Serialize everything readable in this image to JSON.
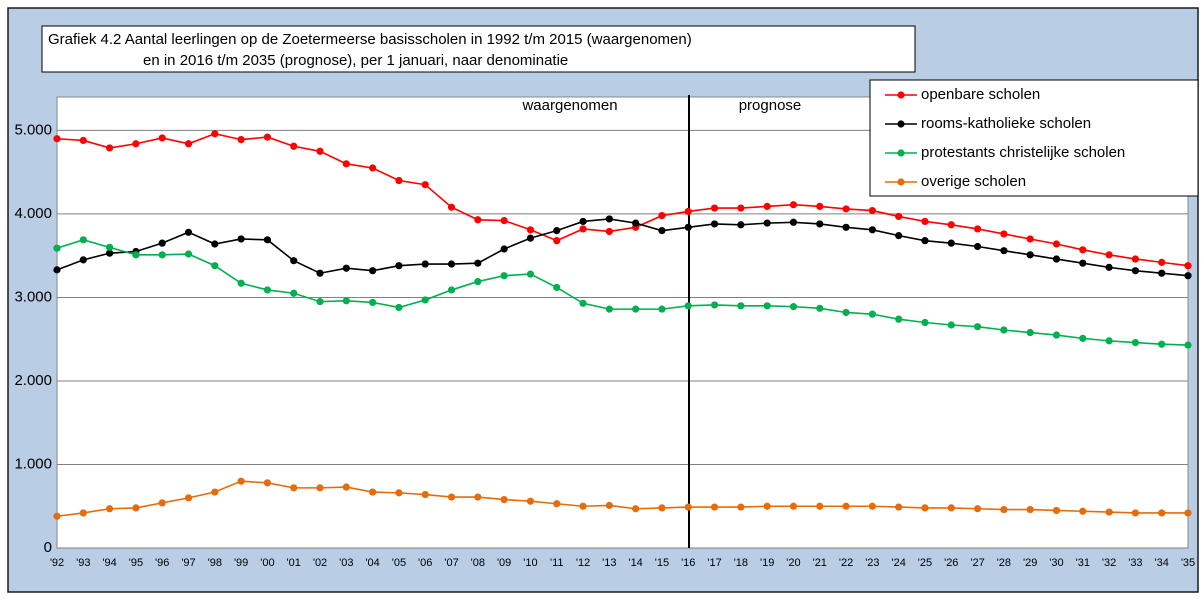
{
  "chart_data": {
    "type": "line",
    "title": [
      "Grafiek 4.2  Aantal leerlingen op de Zoetermeerse basisscholen in 1992 t/m 2015 (waargenomen)",
      "en in 2016 t/m 2035 (prognose), per 1 januari, naar denominatie"
    ],
    "annotations": [
      "waargenomen",
      "prognose"
    ],
    "categories": [
      "'92",
      "'93",
      "'94",
      "'95",
      "'96",
      "'97",
      "'98",
      "'99",
      "'00",
      "'01",
      "'02",
      "'03",
      "'04",
      "'05",
      "'06",
      "'07",
      "'08",
      "'09",
      "'10",
      "'11",
      "'12",
      "'13",
      "'14",
      "'15",
      "'16",
      "'17",
      "'18",
      "'19",
      "'20",
      "'21",
      "'22",
      "'23",
      "'24",
      "'25",
      "'26",
      "'27",
      "'28",
      "'29",
      "'30",
      "'31",
      "'32",
      "'33",
      "'34",
      "'35"
    ],
    "series": [
      {
        "name": "openbare scholen",
        "color": "#ff0000",
        "values": [
          4900,
          4880,
          4790,
          4840,
          4910,
          4840,
          4960,
          4890,
          4920,
          4810,
          4750,
          4600,
          4550,
          4400,
          4350,
          4080,
          3930,
          3920,
          3810,
          3680,
          3820,
          3790,
          3840,
          3980,
          4030,
          4070,
          4070,
          4090,
          4110,
          4090,
          4060,
          4040,
          3970,
          3910,
          3870,
          3820,
          3760,
          3700,
          3640,
          3570,
          3510,
          3460,
          3420,
          3380
        ]
      },
      {
        "name": "rooms-katholieke scholen",
        "color": "#000000",
        "values": [
          3330,
          3450,
          3530,
          3550,
          3650,
          3780,
          3640,
          3700,
          3690,
          3440,
          3290,
          3350,
          3320,
          3380,
          3400,
          3400,
          3410,
          3580,
          3710,
          3800,
          3910,
          3940,
          3890,
          3800,
          3840,
          3880,
          3870,
          3890,
          3900,
          3880,
          3840,
          3810,
          3740,
          3680,
          3650,
          3610,
          3560,
          3510,
          3460,
          3410,
          3360,
          3320,
          3290,
          3260
        ]
      },
      {
        "name": "protestants christelijke scholen",
        "color": "#00b050",
        "values": [
          3590,
          3690,
          3600,
          3510,
          3510,
          3520,
          3380,
          3170,
          3090,
          3050,
          2950,
          2960,
          2940,
          2880,
          2970,
          3090,
          3190,
          3260,
          3280,
          3120,
          2930,
          2860,
          2860,
          2860,
          2900,
          2910,
          2900,
          2900,
          2890,
          2870,
          2820,
          2800,
          2740,
          2700,
          2670,
          2650,
          2610,
          2580,
          2550,
          2510,
          2480,
          2460,
          2440,
          2430
        ]
      },
      {
        "name": "overige scholen",
        "color": "#e46c0a",
        "values": [
          380,
          420,
          470,
          480,
          540,
          600,
          670,
          800,
          780,
          720,
          720,
          730,
          670,
          660,
          640,
          610,
          610,
          580,
          560,
          530,
          500,
          510,
          470,
          480,
          490,
          490,
          490,
          500,
          500,
          500,
          500,
          500,
          490,
          480,
          480,
          470,
          460,
          460,
          450,
          440,
          430,
          420,
          420,
          420
        ]
      }
    ],
    "ylim": [
      0,
      5400
    ],
    "yticks": [
      0,
      {
        "value": 1000,
        "label": "1.000"
      },
      {
        "value": 2000,
        "label": "2.000"
      },
      {
        "value": 3000,
        "label": "3.000"
      },
      {
        "value": 4000,
        "label": "4.000"
      },
      {
        "value": 5000,
        "label": "5.000"
      }
    ],
    "grid": true,
    "legend": "upper right"
  }
}
